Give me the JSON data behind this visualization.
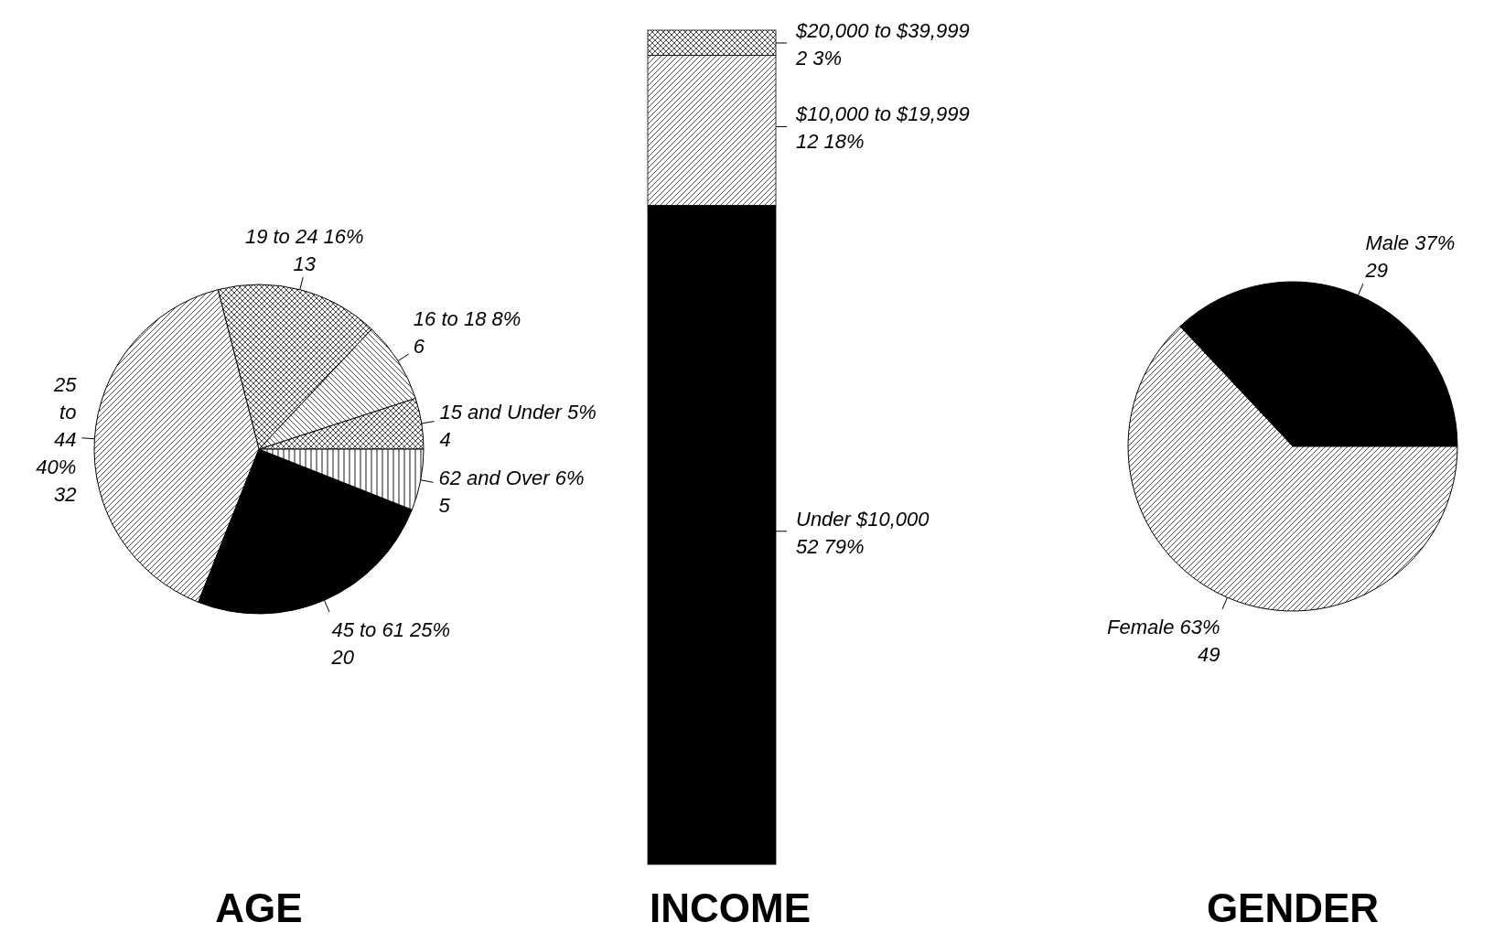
{
  "chart_data": [
    {
      "type": "pie",
      "title": "AGE",
      "categories": [
        "15 and Under",
        "16 to 18",
        "19 to 24",
        "25 to 44",
        "45 to 61",
        "62 and Over"
      ],
      "values": [
        5,
        8,
        16,
        40,
        25,
        6
      ],
      "value_labels": [
        "5%\n4",
        "8%\n6",
        "16%\n13",
        "40%\n32",
        "25%\n20",
        "6%\n5"
      ],
      "colors": [
        "#000000",
        "#000000",
        "#000000",
        "#000000",
        "#000000",
        "#000000"
      ]
    },
    {
      "type": "bar",
      "title": "INCOME",
      "stacked": true,
      "categories": [
        null
      ],
      "series": [
        {
          "name": "Under $10,000",
          "color": "#000000",
          "values": [
            79
          ],
          "value_labels": [
            "52  79%"
          ]
        },
        {
          "name": "$10,000 to $19,999",
          "color": "#000000",
          "values": [
            18
          ],
          "value_labels": [
            "12  18%"
          ]
        },
        {
          "name": "$20,000 to $39,999",
          "color": "#000000",
          "values": [
            3
          ],
          "value_labels": [
            "2  3%"
          ]
        }
      ]
    },
    {
      "type": "pie",
      "title": "GENDER",
      "categories": [
        "Male",
        "Female"
      ],
      "values": [
        37,
        63
      ],
      "value_labels": [
        "37%\n29",
        "63%\n49"
      ],
      "colors": [
        "#000000",
        "#000000"
      ]
    }
  ]
}
